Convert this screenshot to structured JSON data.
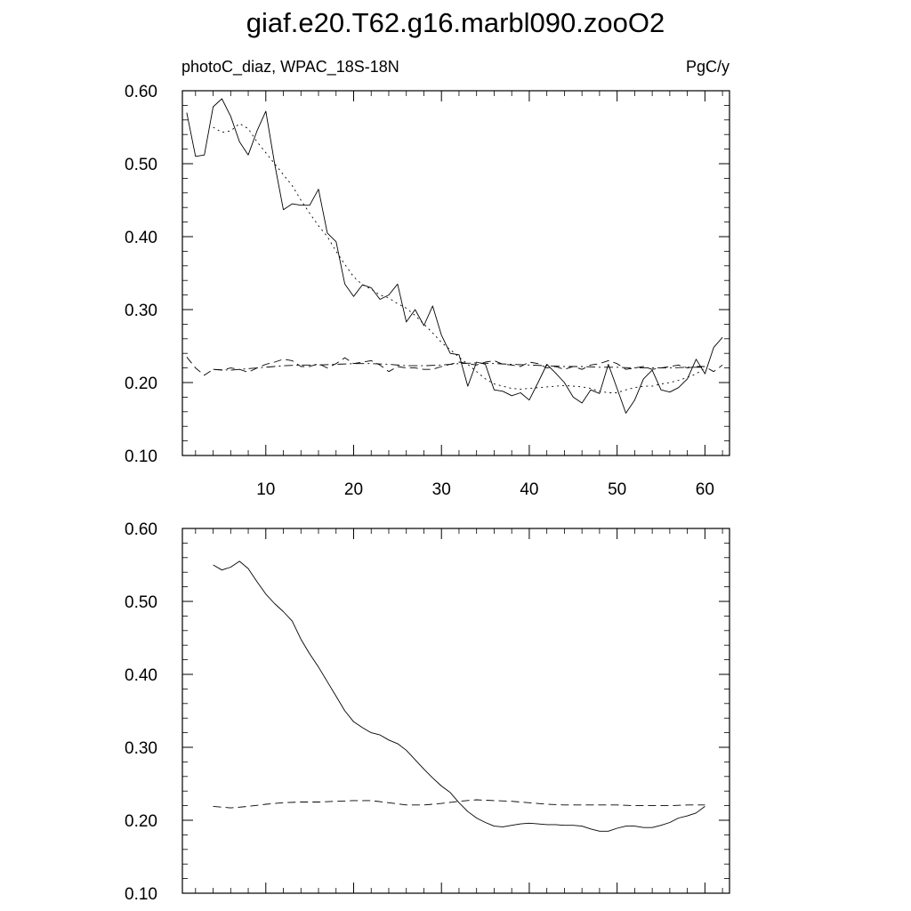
{
  "title": "giaf.e20.T62.g16.marbl090.zooO2",
  "chart_data": [
    {
      "type": "line",
      "subtitle_left": "photoC_diaz, WPAC_18S-18N",
      "subtitle_right": "PgC/y",
      "xlim": [
        0.5,
        62.8
      ],
      "ylim": [
        0.1,
        0.6
      ],
      "xticks": [
        10,
        20,
        30,
        40,
        50,
        60
      ],
      "xtick_labels": [
        "10",
        "20",
        "30",
        "40",
        "50",
        "60"
      ],
      "yticks": [
        0.1,
        0.2,
        0.3,
        0.4,
        0.5,
        0.6
      ],
      "ytick_labels": [
        "0.10",
        "0.20",
        "0.30",
        "0.40",
        "0.50",
        "0.60"
      ],
      "grid": false,
      "series": [
        {
          "style": "solid",
          "x": [
            1,
            2,
            3,
            4,
            5,
            6,
            7,
            8,
            9,
            10,
            11,
            12,
            13,
            14,
            15,
            16,
            17,
            18,
            19,
            20,
            21,
            22,
            23,
            24,
            25,
            26,
            27,
            28,
            29,
            30,
            31,
            32,
            33,
            34,
            35,
            36,
            37,
            38,
            39,
            40,
            41,
            42,
            43,
            44,
            45,
            46,
            47,
            48,
            49,
            50,
            51,
            52,
            53,
            54,
            55,
            56,
            57,
            58,
            59,
            60,
            61,
            62
          ],
          "y": [
            0.57,
            0.51,
            0.512,
            0.578,
            0.589,
            0.565,
            0.53,
            0.512,
            0.545,
            0.572,
            0.5,
            0.437,
            0.445,
            0.443,
            0.443,
            0.465,
            0.405,
            0.393,
            0.335,
            0.318,
            0.334,
            0.33,
            0.314,
            0.32,
            0.335,
            0.283,
            0.3,
            0.278,
            0.305,
            0.265,
            0.24,
            0.238,
            0.195,
            0.228,
            0.225,
            0.19,
            0.188,
            0.182,
            0.186,
            0.176,
            0.2,
            0.225,
            0.213,
            0.2,
            0.18,
            0.172,
            0.19,
            0.185,
            0.225,
            0.192,
            0.158,
            0.176,
            0.205,
            0.217,
            0.19,
            0.187,
            0.193,
            0.205,
            0.232,
            0.212,
            0.248,
            0.262
          ]
        },
        {
          "style": "dotted",
          "x": [
            4,
            5,
            6,
            7,
            8,
            9,
            10,
            11,
            12,
            13,
            14,
            15,
            16,
            17,
            18,
            19,
            20,
            21,
            22,
            23,
            24,
            25,
            26,
            27,
            28,
            29,
            30,
            31,
            32,
            33,
            34,
            35,
            36,
            37,
            38,
            39,
            40,
            41,
            42,
            43,
            44,
            45,
            46,
            47,
            48,
            49,
            50,
            51,
            52,
            53,
            54,
            55,
            56,
            57,
            58,
            59,
            60
          ],
          "y": [
            0.55,
            0.543,
            0.545,
            0.555,
            0.548,
            0.53,
            0.515,
            0.5,
            0.485,
            0.47,
            0.45,
            0.432,
            0.415,
            0.4,
            0.38,
            0.362,
            0.345,
            0.334,
            0.328,
            0.32,
            0.316,
            0.308,
            0.302,
            0.292,
            0.28,
            0.268,
            0.255,
            0.245,
            0.235,
            0.225,
            0.215,
            0.205,
            0.198,
            0.195,
            0.192,
            0.191,
            0.192,
            0.193,
            0.194,
            0.195,
            0.196,
            0.195,
            0.194,
            0.192,
            0.188,
            0.186,
            0.186,
            0.19,
            0.193,
            0.195,
            0.195,
            0.198,
            0.2,
            0.203,
            0.207,
            0.212,
            0.22
          ]
        },
        {
          "style": "dashed",
          "x": [
            1,
            2,
            3,
            4,
            5,
            6,
            7,
            8,
            9,
            10,
            11,
            12,
            13,
            14,
            15,
            16,
            17,
            18,
            19,
            20,
            21,
            22,
            23,
            24,
            25,
            26,
            27,
            28,
            29,
            30,
            31,
            32,
            33,
            34,
            35,
            36,
            37,
            38,
            39,
            40,
            41,
            42,
            43,
            44,
            45,
            46,
            47,
            48,
            49,
            50,
            51,
            52,
            53,
            54,
            55,
            56,
            57,
            58,
            59,
            60,
            61,
            62
          ],
          "y": [
            0.235,
            0.22,
            0.21,
            0.218,
            0.217,
            0.22,
            0.218,
            0.214,
            0.22,
            0.225,
            0.228,
            0.232,
            0.23,
            0.222,
            0.222,
            0.226,
            0.22,
            0.226,
            0.234,
            0.226,
            0.228,
            0.23,
            0.224,
            0.215,
            0.222,
            0.22,
            0.22,
            0.218,
            0.218,
            0.222,
            0.225,
            0.228,
            0.226,
            0.224,
            0.228,
            0.23,
            0.225,
            0.224,
            0.222,
            0.228,
            0.226,
            0.22,
            0.222,
            0.218,
            0.222,
            0.218,
            0.224,
            0.226,
            0.23,
            0.226,
            0.218,
            0.22,
            0.222,
            0.218,
            0.22,
            0.222,
            0.224,
            0.22,
            0.222,
            0.222,
            0.215,
            0.224
          ]
        },
        {
          "style": "dashdot",
          "x": [
            4,
            6,
            8,
            10,
            12,
            14,
            16,
            18,
            20,
            22,
            24,
            26,
            28,
            30,
            32,
            34,
            36,
            38,
            40,
            42,
            44,
            46,
            48,
            50,
            52,
            54,
            56,
            58,
            60
          ],
          "y": [
            0.218,
            0.217,
            0.219,
            0.221,
            0.223,
            0.224,
            0.224,
            0.225,
            0.226,
            0.226,
            0.225,
            0.223,
            0.223,
            0.224,
            0.226,
            0.227,
            0.226,
            0.225,
            0.224,
            0.223,
            0.222,
            0.222,
            0.221,
            0.221,
            0.22,
            0.22,
            0.22,
            0.221,
            0.221
          ]
        }
      ]
    },
    {
      "type": "line",
      "xlim": [
        0.5,
        62.8
      ],
      "ylim": [
        0.1,
        0.6
      ],
      "xticks": [
        10,
        20,
        30,
        40,
        50,
        60
      ],
      "yticks": [
        0.1,
        0.2,
        0.3,
        0.4,
        0.5,
        0.6
      ],
      "ytick_labels": [
        "0.10",
        "0.20",
        "0.30",
        "0.40",
        "0.50",
        "0.60"
      ],
      "grid": false,
      "series": [
        {
          "style": "solid",
          "x": [
            4,
            5,
            6,
            7,
            8,
            9,
            10,
            11,
            12,
            13,
            14,
            15,
            16,
            17,
            18,
            19,
            20,
            21,
            22,
            23,
            24,
            25,
            26,
            27,
            28,
            29,
            30,
            31,
            32,
            33,
            34,
            35,
            36,
            37,
            38,
            39,
            40,
            41,
            42,
            43,
            44,
            45,
            46,
            47,
            48,
            49,
            50,
            51,
            52,
            53,
            54,
            55,
            56,
            57,
            58,
            59,
            60
          ],
          "y": [
            0.55,
            0.543,
            0.547,
            0.555,
            0.545,
            0.527,
            0.51,
            0.497,
            0.486,
            0.473,
            0.448,
            0.428,
            0.41,
            0.39,
            0.37,
            0.35,
            0.335,
            0.327,
            0.32,
            0.317,
            0.31,
            0.305,
            0.296,
            0.283,
            0.27,
            0.258,
            0.247,
            0.238,
            0.224,
            0.212,
            0.203,
            0.197,
            0.192,
            0.191,
            0.193,
            0.195,
            0.196,
            0.195,
            0.194,
            0.194,
            0.193,
            0.193,
            0.192,
            0.188,
            0.185,
            0.185,
            0.189,
            0.192,
            0.192,
            0.19,
            0.19,
            0.193,
            0.197,
            0.203,
            0.206,
            0.21,
            0.219
          ]
        },
        {
          "style": "dashed",
          "x": [
            4,
            6,
            8,
            10,
            12,
            14,
            16,
            18,
            20,
            22,
            24,
            26,
            28,
            30,
            32,
            34,
            36,
            38,
            40,
            42,
            44,
            46,
            48,
            50,
            52,
            54,
            56,
            58,
            60
          ],
          "y": [
            0.219,
            0.217,
            0.219,
            0.222,
            0.224,
            0.225,
            0.225,
            0.226,
            0.227,
            0.227,
            0.224,
            0.221,
            0.221,
            0.223,
            0.226,
            0.228,
            0.227,
            0.226,
            0.224,
            0.222,
            0.221,
            0.221,
            0.221,
            0.221,
            0.22,
            0.22,
            0.22,
            0.221,
            0.221
          ]
        }
      ]
    }
  ]
}
